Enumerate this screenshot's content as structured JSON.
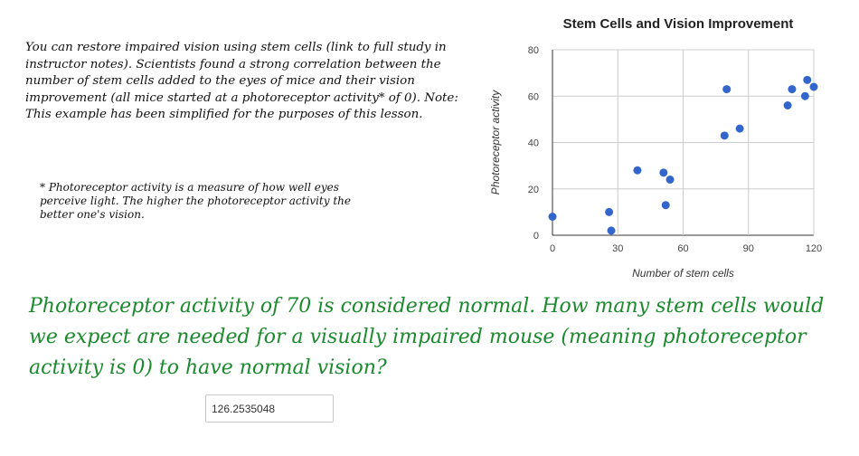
{
  "lesson": {
    "intro": "You can restore impaired vision using stem cells (link to full study in instructor notes). Scientists found a strong correlation between the number of stem cells added to the eyes of mice and their vision improvement (all mice started at a photoreceptor activity* of 0).   Note: This example has been simplified for the purposes of this lesson.",
    "footnote": "* Photoreceptor activity is a measure of how well eyes perceive light. The higher the photoreceptor activity the better one's vision.",
    "question": "Photoreceptor activity of 70 is considered normal. How many stem cells would we expect are needed for a visually impaired mouse (meaning photoreceptor activity is 0) to have normal vision?"
  },
  "answer": {
    "value": "126.2535048"
  },
  "colors": {
    "point": "#3366cc",
    "grid": "#cccccc",
    "question_text": "#1a8a2c"
  },
  "chart_data": {
    "type": "scatter",
    "title": "Stem Cells and Vision Improvement",
    "xlabel": "Number of stem cells",
    "ylabel": "Photoreceptor activity",
    "xlim": [
      0,
      120
    ],
    "ylim": [
      0,
      80
    ],
    "xticks": [
      0,
      30,
      60,
      90,
      120
    ],
    "yticks": [
      0,
      20,
      40,
      60,
      80
    ],
    "grid": true,
    "points": [
      {
        "x": 0,
        "y": 8
      },
      {
        "x": 26,
        "y": 10
      },
      {
        "x": 27,
        "y": 2
      },
      {
        "x": 39,
        "y": 28
      },
      {
        "x": 51,
        "y": 27
      },
      {
        "x": 52,
        "y": 13
      },
      {
        "x": 54,
        "y": 24
      },
      {
        "x": 79,
        "y": 43
      },
      {
        "x": 80,
        "y": 63
      },
      {
        "x": 86,
        "y": 46
      },
      {
        "x": 108,
        "y": 56
      },
      {
        "x": 110,
        "y": 63
      },
      {
        "x": 116,
        "y": 60
      },
      {
        "x": 117,
        "y": 67
      },
      {
        "x": 120,
        "y": 64
      }
    ]
  }
}
